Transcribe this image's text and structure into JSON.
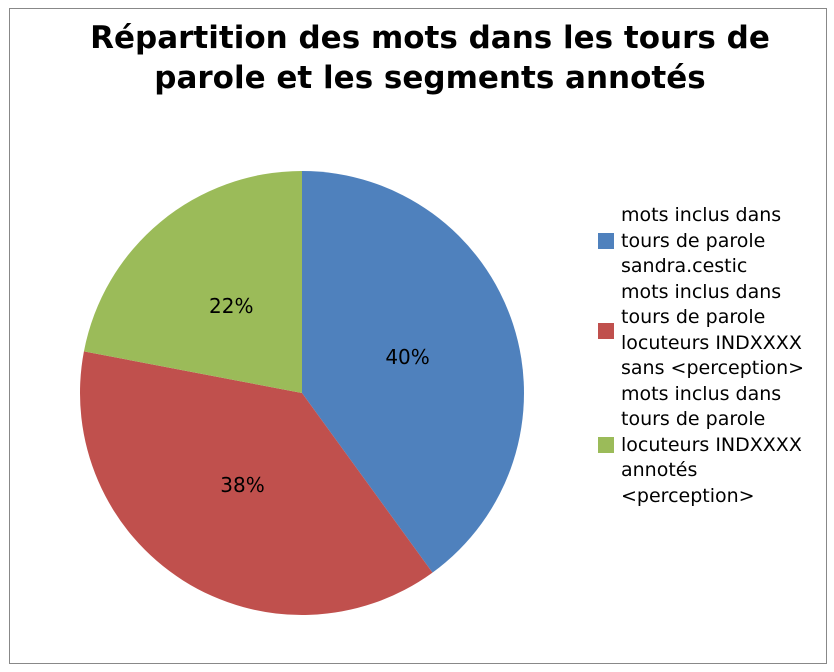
{
  "chart_data": {
    "type": "pie",
    "title": [
      "Répartition des mots dans les tours de",
      "parole et les segments annotés"
    ],
    "categories": [
      "mots inclus dans tours de parole sandra.cestic",
      "mots inclus dans tours de parole locuteurs INDXXXX sans <perception>",
      "mots inclus dans tours de parole locuteurs INDXXXX annotés <perception>"
    ],
    "values": [
      40,
      38,
      22
    ],
    "value_labels": [
      "40%",
      "38%",
      "22%"
    ],
    "colors": [
      "#4f81bd",
      "#c0504d",
      "#9bbb59"
    ],
    "legend": "right"
  }
}
